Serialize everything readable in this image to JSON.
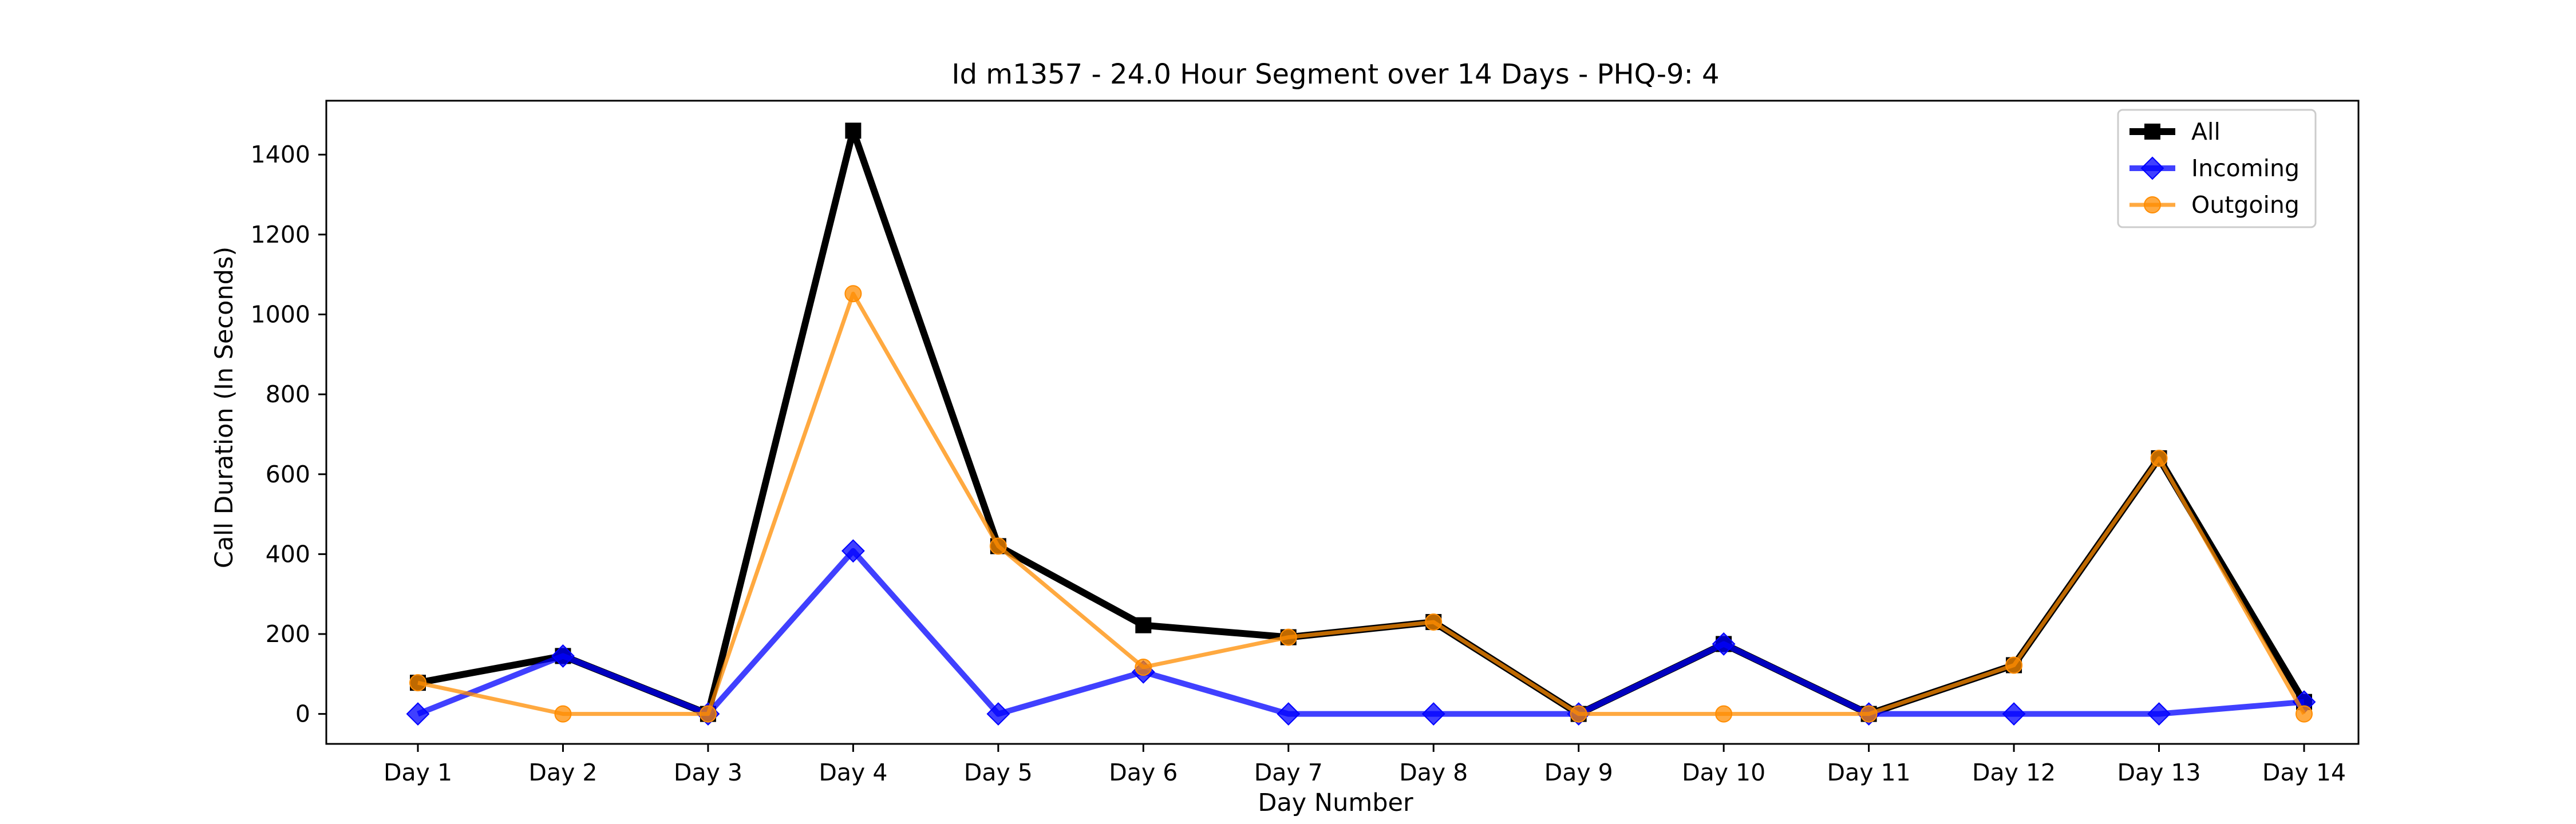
{
  "chart_data": {
    "type": "line",
    "title": "Id m1357 - 24.0 Hour Segment over 14 Days - PHQ-9: 4",
    "xlabel": "Day Number",
    "ylabel": "Call Duration (In Seconds)",
    "categories": [
      "Day 1",
      "Day 2",
      "Day 3",
      "Day 4",
      "Day 5",
      "Day 6",
      "Day 7",
      "Day 8",
      "Day 9",
      "Day 10",
      "Day 11",
      "Day 12",
      "Day 13",
      "Day 14"
    ],
    "yticks": [
      "0",
      "200",
      "400",
      "600",
      "800",
      "1000",
      "1200",
      "1400"
    ],
    "ylim": [
      -75,
      1535
    ],
    "grid": false,
    "legend_position": "top-right",
    "series": [
      {
        "name": "All",
        "color": "#000000",
        "marker": "square",
        "values": [
          78,
          145,
          0,
          1460,
          420,
          222,
          192,
          230,
          0,
          175,
          0,
          122,
          640,
          30
        ]
      },
      {
        "name": "Incoming",
        "color": "#0000ff",
        "marker": "diamond",
        "values": [
          0,
          145,
          0,
          408,
          0,
          105,
          0,
          0,
          0,
          175,
          0,
          0,
          0,
          30
        ]
      },
      {
        "name": "Outgoing",
        "color": "#ff8c00",
        "marker": "circle",
        "values": [
          78,
          0,
          0,
          1052,
          420,
          117,
          192,
          230,
          0,
          0,
          0,
          122,
          640,
          0
        ]
      }
    ]
  }
}
